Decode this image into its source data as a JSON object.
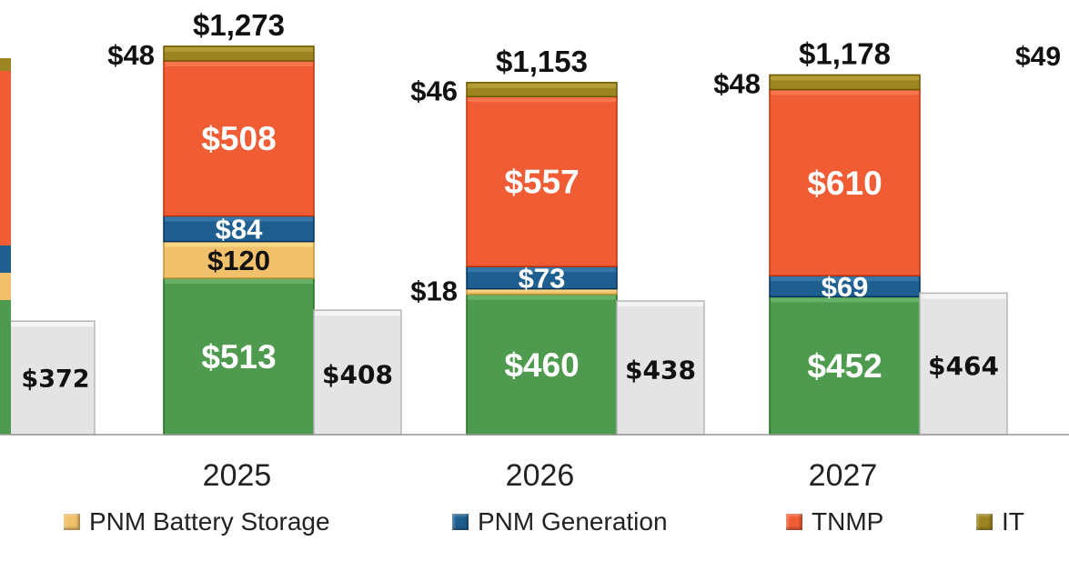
{
  "chart_data": {
    "type": "bar",
    "stacked": true,
    "categories": [
      "2025",
      "2026",
      "2027"
    ],
    "series": [
      {
        "name": "",
        "values": [
          513,
          460,
          452
        ],
        "color": "#4e9a4e",
        "label_color": "#ffffff",
        "labels": [
          "$513",
          "$460",
          "$452"
        ]
      },
      {
        "name": "PNM Battery Storage",
        "values": [
          120,
          18,
          0
        ],
        "color": "#f0c06a",
        "label_color": "#111111",
        "labels": [
          "$120",
          "$18",
          ""
        ]
      },
      {
        "name": "PNM Generation",
        "values": [
          84,
          73,
          69
        ],
        "color": "#1f5f8f",
        "label_color": "#ffffff",
        "labels": [
          "$84",
          "$73",
          "$69"
        ]
      },
      {
        "name": "TNMP",
        "values": [
          508,
          557,
          610
        ],
        "color": "#f05d35",
        "label_color": "#ffffff",
        "labels": [
          "$508",
          "$557",
          "$610"
        ]
      },
      {
        "name": "IT",
        "values": [
          48,
          46,
          48
        ],
        "color": "#9c8420",
        "label_color": "#111111",
        "labels": [
          "$48",
          "$46",
          "$48"
        ]
      }
    ],
    "totals": [
      "$1,273",
      "$1,153",
      "$1,178"
    ],
    "comparison": {
      "values": [
        408,
        438,
        464
      ],
      "labels": [
        "$408",
        "$438",
        "$464"
      ],
      "color": "#e4e4e4"
    },
    "partial_left": {
      "comparison_label": "$372",
      "comparison_value": 372
    },
    "partial_right": {
      "label": "$49"
    },
    "legend": {
      "position": "bottom"
    }
  }
}
